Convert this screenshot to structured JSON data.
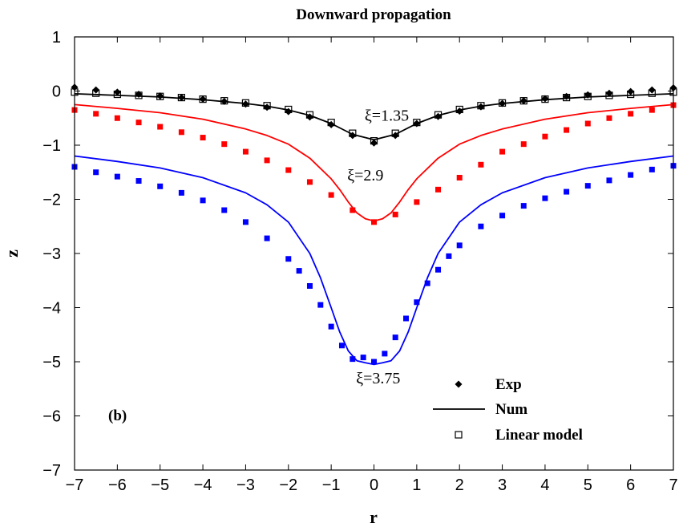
{
  "chart_data": {
    "type": "line",
    "title": "Downward propagation",
    "xlabel": "r",
    "ylabel": "z",
    "xlim": [
      -7,
      7
    ],
    "ylim": [
      -7,
      1
    ],
    "xticks": [
      -7,
      -6,
      -5,
      -4,
      -3,
      -2,
      -1,
      0,
      1,
      2,
      3,
      4,
      5,
      6,
      7
    ],
    "yticks": [
      1,
      0,
      -1,
      -2,
      -3,
      -4,
      -5,
      -6,
      -7
    ],
    "grid": false,
    "panel_label": "(b)",
    "legend": {
      "position": "bottom-right",
      "entries": [
        "Exp",
        "Num",
        "Linear model"
      ]
    },
    "annotations": [
      {
        "text": "ξ=1.35",
        "x": 0.3,
        "y": -0.55
      },
      {
        "text": "ξ=2.9",
        "x": -0.2,
        "y": -1.65
      },
      {
        "text": "ξ=3.75",
        "x": 0.1,
        "y": -5.4
      }
    ],
    "series": [
      {
        "curve": "xi_1.35",
        "kind": "Exp",
        "color": "#000000",
        "marker": "diamond",
        "x": [
          -7.0,
          -6.5,
          -6.0,
          -5.5,
          -5.0,
          -4.5,
          -4.0,
          -3.5,
          -3.0,
          -2.5,
          -2.0,
          -1.5,
          -1.0,
          -0.5,
          0.0,
          0.5,
          1.0,
          1.5,
          2.0,
          2.5,
          3.0,
          3.5,
          4.0,
          4.5,
          5.0,
          5.5,
          6.0,
          6.5,
          7.0
        ],
        "y": [
          0.07,
          0.02,
          -0.02,
          -0.06,
          -0.09,
          -0.12,
          -0.15,
          -0.19,
          -0.24,
          -0.3,
          -0.38,
          -0.48,
          -0.62,
          -0.82,
          -0.96,
          -0.82,
          -0.6,
          -0.47,
          -0.37,
          -0.29,
          -0.23,
          -0.18,
          -0.14,
          -0.1,
          -0.07,
          -0.04,
          -0.01,
          0.02,
          0.06
        ]
      },
      {
        "curve": "xi_1.35",
        "kind": "Linear model",
        "color": "#000000",
        "marker": "open-square",
        "x": [
          -7.0,
          -6.5,
          -6.0,
          -5.5,
          -5.0,
          -4.5,
          -4.0,
          -3.5,
          -3.0,
          -2.5,
          -2.0,
          -1.5,
          -1.0,
          -0.5,
          0.0,
          0.5,
          1.0,
          1.5,
          2.0,
          2.5,
          3.0,
          3.5,
          4.0,
          4.5,
          5.0,
          5.5,
          6.0,
          6.5,
          7.0
        ],
        "y": [
          -0.02,
          -0.04,
          -0.06,
          -0.08,
          -0.1,
          -0.12,
          -0.15,
          -0.18,
          -0.22,
          -0.27,
          -0.34,
          -0.44,
          -0.58,
          -0.78,
          -0.92,
          -0.78,
          -0.58,
          -0.44,
          -0.34,
          -0.27,
          -0.22,
          -0.18,
          -0.15,
          -0.12,
          -0.1,
          -0.08,
          -0.06,
          -0.04,
          -0.02
        ]
      },
      {
        "curve": "xi_1.35",
        "kind": "Num",
        "color": "#000000",
        "marker": "none",
        "x": [
          -7.0,
          -6.0,
          -5.0,
          -4.0,
          -3.0,
          -2.5,
          -2.0,
          -1.5,
          -1.0,
          -0.5,
          0.0,
          0.5,
          1.0,
          1.5,
          2.0,
          2.5,
          3.0,
          4.0,
          5.0,
          6.0,
          7.0
        ],
        "y": [
          -0.05,
          -0.08,
          -0.11,
          -0.16,
          -0.23,
          -0.28,
          -0.35,
          -0.45,
          -0.6,
          -0.8,
          -0.9,
          -0.8,
          -0.6,
          -0.45,
          -0.35,
          -0.28,
          -0.23,
          -0.16,
          -0.11,
          -0.08,
          -0.05
        ]
      },
      {
        "curve": "xi_2.9",
        "kind": "Exp",
        "color": "#ff0000",
        "marker": "filled-square",
        "x": [
          -7.0,
          -6.5,
          -6.0,
          -5.5,
          -5.0,
          -4.5,
          -4.0,
          -3.5,
          -3.0,
          -2.5,
          -2.0,
          -1.5,
          -1.0,
          -0.5,
          0.0,
          0.5,
          1.0,
          1.5,
          2.0,
          2.5,
          3.0,
          3.5,
          4.0,
          4.5,
          5.0,
          5.5,
          6.0,
          6.5,
          7.0
        ],
        "y": [
          -0.35,
          -0.42,
          -0.5,
          -0.58,
          -0.66,
          -0.76,
          -0.86,
          -0.98,
          -1.12,
          -1.28,
          -1.46,
          -1.68,
          -1.92,
          -2.2,
          -2.42,
          -2.28,
          -2.05,
          -1.82,
          -1.6,
          -1.36,
          -1.12,
          -0.98,
          -0.84,
          -0.72,
          -0.6,
          -0.5,
          -0.42,
          -0.35,
          -0.26
        ]
      },
      {
        "curve": "xi_2.9",
        "kind": "Num",
        "color": "#ff0000",
        "marker": "none",
        "x": [
          -7.0,
          -6.0,
          -5.0,
          -4.0,
          -3.0,
          -2.5,
          -2.0,
          -1.5,
          -1.0,
          -0.8,
          -0.6,
          -0.4,
          -0.2,
          0.0,
          0.2,
          0.4,
          0.6,
          0.8,
          1.0,
          1.5,
          2.0,
          2.5,
          3.0,
          4.0,
          5.0,
          6.0,
          7.0
        ],
        "y": [
          -0.25,
          -0.32,
          -0.4,
          -0.52,
          -0.7,
          -0.82,
          -0.98,
          -1.24,
          -1.62,
          -1.82,
          -2.05,
          -2.25,
          -2.36,
          -2.4,
          -2.36,
          -2.25,
          -2.05,
          -1.82,
          -1.62,
          -1.24,
          -0.98,
          -0.82,
          -0.7,
          -0.52,
          -0.4,
          -0.32,
          -0.25
        ]
      },
      {
        "curve": "xi_3.75",
        "kind": "Exp",
        "color": "#0000ff",
        "marker": "filled-square",
        "x": [
          -7.0,
          -6.5,
          -6.0,
          -5.5,
          -5.0,
          -4.5,
          -4.0,
          -3.5,
          -3.0,
          -2.5,
          -2.0,
          -1.75,
          -1.5,
          -1.25,
          -1.0,
          -0.75,
          -0.5,
          -0.25,
          0.0,
          0.25,
          0.5,
          0.75,
          1.0,
          1.25,
          1.5,
          1.75,
          2.0,
          2.5,
          3.0,
          3.5,
          4.0,
          4.5,
          5.0,
          5.5,
          6.0,
          6.5,
          7.0
        ],
        "y": [
          -1.4,
          -1.5,
          -1.58,
          -1.66,
          -1.76,
          -1.88,
          -2.02,
          -2.2,
          -2.42,
          -2.72,
          -3.1,
          -3.32,
          -3.6,
          -3.95,
          -4.35,
          -4.7,
          -4.95,
          -4.92,
          -5.0,
          -4.85,
          -4.55,
          -4.2,
          -3.9,
          -3.55,
          -3.3,
          -3.05,
          -2.85,
          -2.5,
          -2.3,
          -2.12,
          -1.98,
          -1.86,
          -1.75,
          -1.65,
          -1.55,
          -1.45,
          -1.38
        ]
      },
      {
        "curve": "xi_3.75",
        "kind": "Num",
        "color": "#0000ff",
        "marker": "none",
        "x": [
          -7.0,
          -6.0,
          -5.0,
          -4.0,
          -3.0,
          -2.5,
          -2.0,
          -1.5,
          -1.25,
          -1.0,
          -0.8,
          -0.6,
          -0.4,
          -0.2,
          0.0,
          0.2,
          0.4,
          0.6,
          0.8,
          1.0,
          1.25,
          1.5,
          2.0,
          2.5,
          3.0,
          4.0,
          5.0,
          6.0,
          7.0
        ],
        "y": [
          -1.2,
          -1.3,
          -1.42,
          -1.6,
          -1.88,
          -2.1,
          -2.42,
          -3.0,
          -3.45,
          -4.0,
          -4.45,
          -4.8,
          -4.98,
          -5.02,
          -5.05,
          -5.02,
          -4.98,
          -4.8,
          -4.45,
          -4.0,
          -3.45,
          -3.0,
          -2.42,
          -2.1,
          -1.88,
          -1.6,
          -1.42,
          -1.3,
          -1.2
        ]
      }
    ]
  }
}
